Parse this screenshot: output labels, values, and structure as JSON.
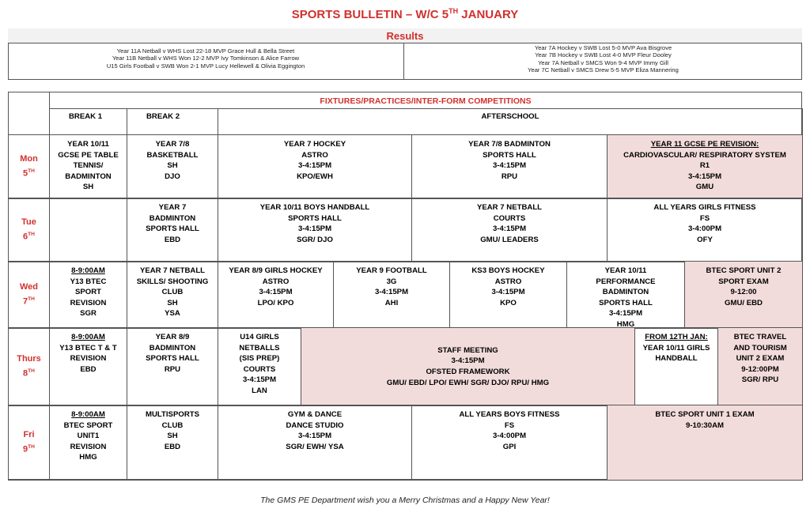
{
  "header": {
    "title": "SPORTS BULLETIN – W/C 5",
    "title_sup": "TH",
    "title_rest": " JANUARY"
  },
  "results": {
    "heading": "Results",
    "left": [
      "Year 11A Netball v WHS Lost 22-18 MVP Grace Hull & Bella Street",
      "Year 11B Netball v WHS Won 12-2 MVP Ivy Tomkinson & Alice Farrow",
      "U15 Girls Football v SWB Won 2-1 MVP Lucy Hellewell & Olivia Eggington"
    ],
    "right": [
      "Year 7A Hockey v SWB Lost 5-0 MVP Ava Bisgrove",
      "Year 7B Hockey v SWB Lost 4-0 MVP Fleur Dooley",
      "Year 7A Netball v SMCS Won 9-4 MVP Immy Gill",
      "Year 7C Netball v SMCS Drew 5-5 MVP Eliza Mannering"
    ]
  },
  "table": {
    "heading": "FIXTURES/PRACTICES/INTER-FORM COMPETITIONS",
    "columns": [
      "BREAK 1",
      "BREAK 2",
      "AFTERSCHOOL"
    ],
    "rows": [
      {
        "day": "Mon",
        "date": "5",
        "sup": "TH",
        "cells": [
          [
            "YEAR 10/11",
            "GCSE PE TABLE",
            "TENNIS/",
            "BADMINTON",
            "SH"
          ],
          [
            "YEAR 7/8",
            "BASKETBALL",
            "SH",
            "DJO"
          ],
          [
            "YEAR 7 HOCKEY",
            "ASTRO",
            "3-4:15PM",
            "KPO/EWH"
          ],
          [
            "YEAR 7/8 BADMINTON",
            "SPORTS HALL",
            "3-4:15PM",
            "RPU"
          ],
          [
            "YEAR 11 GCSE PE REVISION:",
            "CARDIOVASCULAR/ RESPIRATORY SYSTEM",
            "R1",
            "3-4:15PM",
            "GMU"
          ]
        ]
      },
      {
        "day": "Tue",
        "date": "6",
        "sup": "TH",
        "cells": [
          [
            "YEAR 7",
            "BADMINTON",
            "SPORTS HALL",
            "EBD"
          ],
          [
            "YEAR 10/11 BOYS HANDBALL",
            "SPORTS HALL",
            "3-4:15PM",
            "SGR/ DJO"
          ],
          [
            "YEAR 7 NETBALL",
            "COURTS",
            "3-4:15PM",
            "GMU/ LEADERS"
          ],
          [
            "ALL YEARS GIRLS FITNESS",
            "FS",
            "3-4:00PM",
            "OFY"
          ]
        ]
      },
      {
        "day": "Wed",
        "date": "7",
        "sup": "TH",
        "cells": [
          [
            "8-9:00AM",
            "Y13 BTEC",
            "SPORT",
            "REVISION",
            "SGR"
          ],
          [
            "YEAR 7 NETBALL",
            "SKILLS/ SHOOTING",
            "CLUB",
            "SH",
            "YSA"
          ],
          [
            "YEAR 8/9 GIRLS HOCKEY",
            "ASTRO",
            "3-4:15PM",
            "LPO/ KPO"
          ],
          [
            "YEAR 9 FOOTBALL",
            "3G",
            "3-4:15PM",
            "AHI"
          ],
          [
            "KS3 BOYS HOCKEY",
            "ASTRO",
            "3-4:15PM",
            "KPO"
          ],
          [
            "YEAR 10/11",
            "PERFORMANCE",
            "BADMINTON",
            "SPORTS HALL",
            "3-4:15PM",
            "HMG"
          ],
          [
            "BTEC SPORT UNIT 2",
            "SPORT EXAM",
            "9-12:00",
            "GMU/ EBD"
          ]
        ]
      },
      {
        "day": "Thurs",
        "date": "8",
        "sup": "TH",
        "cells": [
          [
            "8-9:00AM",
            "Y13 BTEC T & T",
            "REVISION",
            "EBD"
          ],
          [
            "YEAR 8/9",
            "BADMINTON",
            "SPORTS HALL",
            "RPU"
          ],
          [
            "U14 GIRLS",
            "NETBALLS",
            "(SIS PREP)",
            "COURTS",
            "3-4:15PM",
            "LAN"
          ],
          [
            "STAFF MEETING",
            "3-4:15PM",
            "OFSTED FRAMEWORK",
            "GMU/ EBD/ LPO/ EWH/ SGR/ DJO/ RPU/ HMG"
          ],
          [
            "FROM 12TH JAN:",
            "YEAR 10/11 GIRLS",
            "HANDBALL"
          ],
          [
            "BTEC TRAVEL",
            "AND TOURISM",
            "UNIT 2 EXAM",
            "9-12:00PM",
            "SGR/ RPU"
          ]
        ]
      },
      {
        "day": "Fri",
        "date": "9",
        "sup": "TH",
        "cells": [
          [
            "8-9:00AM",
            "BTEC SPORT",
            "UNIT1",
            "REVISION",
            "HMG"
          ],
          [
            "MULTISPORTS",
            "CLUB",
            "SH",
            "EBD"
          ],
          [
            "GYM & DANCE",
            "DANCE STUDIO",
            "3-4:15PM",
            "SGR/ EWH/ YSA"
          ],
          [
            "ALL YEARS BOYS FITNESS",
            "FS",
            "3-4:00PM",
            "GPI"
          ],
          [
            "BTEC SPORT UNIT 1 EXAM",
            "9-10:30AM"
          ]
        ]
      }
    ]
  },
  "footer": "The GMS PE Department wish you a Merry Christmas and a Happy New Year!"
}
